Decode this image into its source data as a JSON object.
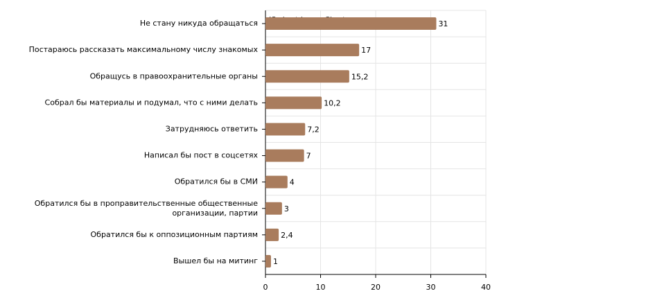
{
  "chart_data": {
    "type": "hbar",
    "watermark": "JS chart by amCharts",
    "categories": [
      "Не стану никуда обращаться",
      "Постараюсь рассказать максимальному числу знакомых",
      "Обращусь в правоохранительные органы",
      "Собрал бы материалы и подумал, что с ними делать",
      "Затрудняюсь ответить",
      "Написал бы пост в соцсетях",
      "Обратился бы в СМИ",
      "Обратился бы в проправительственные общественные организации, партии",
      "Обратился бы к оппозиционным партиям",
      "Вышел бы на митинг"
    ],
    "values": [
      31,
      17,
      15.2,
      10.2,
      7.2,
      7,
      4,
      3,
      2.4,
      1
    ],
    "value_labels": [
      "31",
      "17",
      "15,2",
      "10,2",
      "7,2",
      "7",
      "4",
      "3",
      "2,4",
      "1"
    ],
    "color": "#a97c5d",
    "xlim": [
      0,
      40
    ],
    "xticks": [
      0,
      10,
      20,
      30,
      40
    ],
    "grid": true
  }
}
